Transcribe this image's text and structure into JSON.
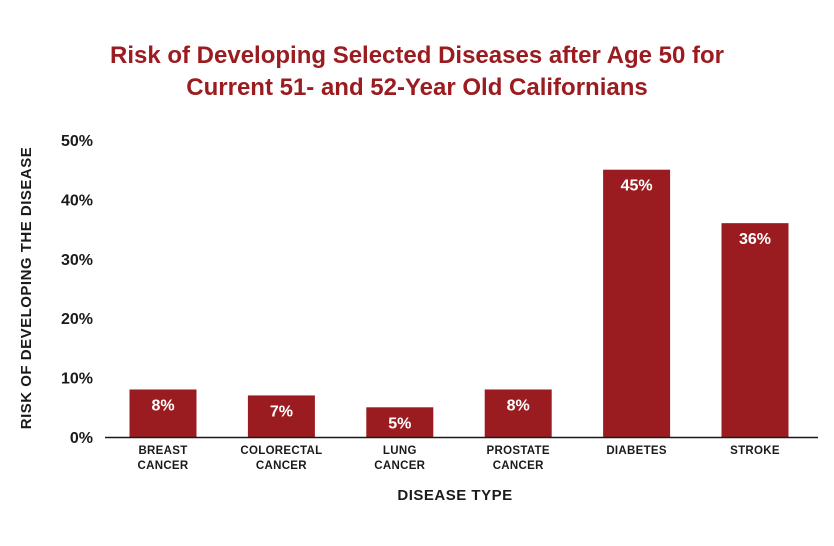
{
  "chart_data": {
    "type": "bar",
    "title_line1": "Risk of Developing Selected Diseases after Age 50 for",
    "title_line2": "Current 51- and 52-Year Old Californians",
    "xlabel": "DISEASE TYPE",
    "ylabel": "RISK OF DEVELOPING THE DISEASE",
    "categories": [
      [
        "BREAST",
        "CANCER"
      ],
      [
        "COLORECTAL",
        "CANCER"
      ],
      [
        "LUNG",
        "CANCER"
      ],
      [
        "PROSTATE",
        "CANCER"
      ],
      [
        "DIABETES"
      ],
      [
        "STROKE"
      ]
    ],
    "values": [
      8,
      7,
      5,
      8,
      45,
      36
    ],
    "value_labels": [
      "8%",
      "7%",
      "5%",
      "8%",
      "45%",
      "36%"
    ],
    "yticks": [
      "0%",
      "10%",
      "20%",
      "30%",
      "40%",
      "50%"
    ],
    "ylim": [
      0,
      50
    ],
    "grid": false,
    "colors": {
      "bar": "#9b1c20",
      "title": "#9b1c20",
      "axis": "#1a1a1a"
    }
  }
}
